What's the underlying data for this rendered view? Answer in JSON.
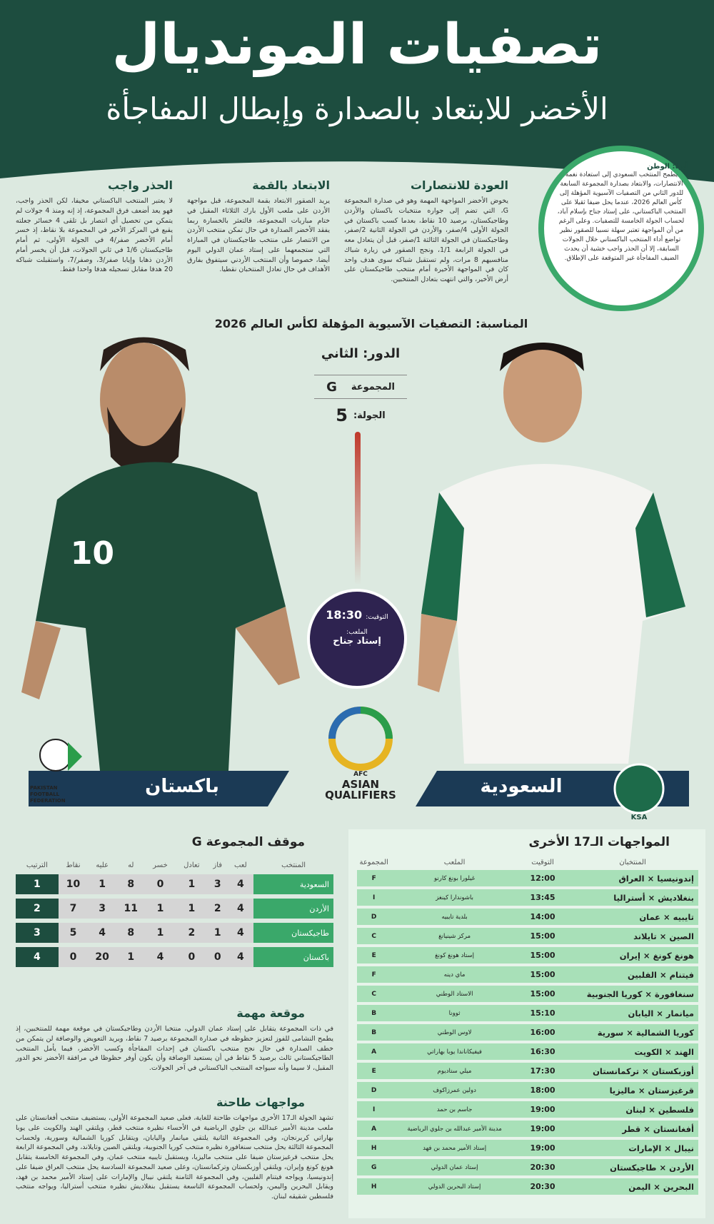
{
  "header": {
    "title": "تصفيات المونديال",
    "subtitle": "الأخضر للابتعاد بالصدارة وإبطال المفاجأة"
  },
  "intro": {
    "author": "أبها: الوطن",
    "text": "يطمح المنتخب السعودي إلى استعادة نغمة الانتصارات، والابتعاد بصدارة المجموعة السابعة للدور الثاني من التصفيات الآسيوية المؤهلة إلى كأس العالم 2026، عندما يحل ضيفا ثقيلا على المنتخب الباكستاني، على إستاد جناح بإسلام آباد، لحساب الجولة الخامسة للتصفيات. وعلى الرغم من أن المواجهة تعتبر سهلة نسبيا للصقور نظير تواضع أداء المنتخب الباكستاني خلال الجولات السابقة، إلا أن الحذر واجب خشية أن يحدث الضيف المفاجأة غير المتوقعة على الإطلاق."
  },
  "columns": [
    {
      "title": "العودة للانتصارات",
      "text": "يخوض الأخضر المواجهة المهمة وهو في صدارة المجموعة G، التي تضم إلى جواره منتخبات باكستان والأردن وطاجيكستان، برصيد 10 نقاط، بعدما كسب باكستان في الجولة الأولى 4/صفر، والأردن في الجولة الثانية 2/صفر، وطاجيكستان في الجولة الثالثة 1/صفر، قبل أن يتعادل معه في الجولة الرابعة 1/1، ونجح الصقور في زيارة شباك منافسيهم 8 مرات، ولم تستقبل شباكه سوى هدف واحد كان في المواجهة الأخيرة أمام منتخب طاجيكستان على أرض الأخير، والتي انتهت بتعادل المنتخبين."
    },
    {
      "title": "الابتعاد بالقمة",
      "text": "يريد الصقور الابتعاد بقمة المجموعة، قبل مواجهة الأردن على ملعب الأول بارك الثلاثاء المقبل في ختام مباريات المجموعة، فالتعثر بالخسارة ربما يفقد الأخضر الصدارة في حال تمكن منتخب الأردن من الانتصار على منتخب طاجيكستان في المباراة التي ستجمعهما على إستاد عمان الدولي اليوم أيضا، خصوصا وأن المنتخب الأردني سيتفوق بفارق الأهداف في حال تعادل المنتخبان نقطيا."
    },
    {
      "title": "الحذر واجب",
      "text": "لا يعتبر المنتخب الباكستاني مخيفا، لكن الحذر واجب، فهو يعد أضعف فرق المجموعة، إذ إنه ومنذ 4 جولات لم يتمكن من تحصيل أي انتصار بل تلقى 4 خسائر جعلته يقبع في المركز الأخير في المجموعة بلا نقاط، إذ خسر أمام الأخضر صفر/4 في الجولة الأولى، ثم أمام طاجيكستان 1/6 في ثاني الجولات، قبل أن يخسر أمام الأردن ذهابا وإيابا صفر/3، وصفر/7، واستقبلت شباكه 20 هدفا مقابل تسجيله هدفا واحدا فقط."
    }
  ],
  "match": {
    "occasion": "المناسبة: التصفيات الآسيوية المؤهلة لكأس العالم 2026",
    "round": "الدور: الثاني",
    "group_label": "المجموعة",
    "group": "G",
    "matchday_label": "الجولة:",
    "matchday": "5",
    "time_label": "التوقيت:",
    "time": "18:30",
    "venue_label": "الملعب:",
    "venue": "إستاد جناح",
    "home": "باكستان",
    "away": "السعودية",
    "away_badge": "KSA",
    "home_badge": "PAKISTAN FOOTBALL FEDERATION",
    "afc": "AFC",
    "afc_name": "ASIAN QUALIFIERS"
  },
  "standings": {
    "title": "موقف المجموعة G",
    "headers": [
      "المنتخب",
      "لعب",
      "فاز",
      "تعادل",
      "خسر",
      "له",
      "عليه",
      "نقاط",
      "الترتيب"
    ],
    "rows": [
      [
        "السعودية",
        "4",
        "3",
        "1",
        "0",
        "8",
        "1",
        "10",
        "1"
      ],
      [
        "الأردن",
        "4",
        "2",
        "1",
        "1",
        "11",
        "3",
        "7",
        "2"
      ],
      [
        "طاجيكستان",
        "4",
        "1",
        "2",
        "1",
        "8",
        "4",
        "5",
        "3"
      ],
      [
        "باكستان",
        "4",
        "0",
        "0",
        "4",
        "1",
        "20",
        "0",
        "4"
      ]
    ]
  },
  "notes": [
    {
      "title": "موقعة مهمة",
      "text": "في ذات المجموعة يتقابل على إستاد عمان الدولي، منتخبا الأردن وطاجيكستان في موقعة مهمة للمنتخبين، إذ يطمح النشامى للفوز لتعزيز حظوظه في صدارة المجموعة برصيد 7 نقاط، ويريد التعويض والوصافة لن يتمكن من خطف الصدارة في حال نجح منتخب باكستان في إحداث المفاجأة وكسب الأخضر، فيما يأمل المنتخب الطاجيكستاني ثالث برصيد 5 نقاط في أن يستعيد الوصافة وأن يكون أوفر حظوظا في مرافقة الأخضر نحو الدور المقبل، لا سيما وأنه سيواجه المنتخب الباكستاني في آخر الجولات."
    },
    {
      "title": "مواجهات طاحنة",
      "text": "تشهد الجولة الـ17 الأخرى مواجهات طاحنة للغاية، فعلى صعيد المجموعة الأولى، يستضيف منتخب أفغانستان على ملعب مدينة الأمير عبدالله بن جلوي الرياضية في الأحساء نظيره منتخب قطر، ويلتقي الهند والكويت على يوبا بهاراتي كريرنجان، وفي المجموعة الثانية يلتقي ميانمار واليابان، ويتقابل كوريا الشمالية وسورية، ولحساب المجموعة الثالثة يحل منتخب سنغافورة نظيره منتخب كوريا الجنوبية، ويلتقي الصين وتايلاند، وفي المجموعة الرابعة يحل منتخب قرغيزستان ضيفا على منتخب ماليزيا، ويستقبل تايبيه منتخب عمان، وفي المجموعة الخامسة يتقابل هونغ كونغ وإيران، ويلتقي أوزبكستان وتركمانستان، وعلى صعيد المجموعة السادسة يحل منتخب العراق ضيفا على إندونيسيا، ويواجه فيتنام الفلبين، وفي المجموعة الثامنة يلتقي نيبال والإمارات على إستاد الأمير محمد بن فهد، ويقابل البحرين واليمن، ولحساب المجموعة التاسعة يستقبل بنغلاديش نظيره منتخب أستراليا، ويواجه منتخب فلسطين شقيقه لبنان."
    }
  ],
  "fixtures": {
    "title": "المواجهات الـ17 الأخرى",
    "headers": [
      "المنتخبان",
      "التوقيت",
      "الملعب",
      "المجموعة"
    ],
    "rows": [
      [
        "إندونيسيا × العراق",
        "12:00",
        "غيلورا بونغ كارنو",
        "F"
      ],
      [
        "بنغلاديش × أستراليا",
        "13:45",
        "باشوندارا كينغز",
        "I"
      ],
      [
        "تايبيه × عمان",
        "14:00",
        "بلدية تايبيه",
        "D"
      ],
      [
        "الصين × تايلاند",
        "15:00",
        "مركز شينيانغ",
        "C"
      ],
      [
        "هونغ كونغ × إيران",
        "15:00",
        "إستاد هونغ كونغ",
        "E"
      ],
      [
        "فيتنام × الفلبين",
        "15:00",
        "ماي دينه",
        "F"
      ],
      [
        "سنغافورة × كوريا الجنوبية",
        "15:00",
        "الاستاد الوطني",
        "C"
      ],
      [
        "ميانمار × اليابان",
        "15:10",
        "ثوونا",
        "B"
      ],
      [
        "كوريا الشمالية × سورية",
        "16:00",
        "لاوس الوطني",
        "B"
      ],
      [
        "الهند × الكويت",
        "16:30",
        "فيفيكاناندا يوبا بهاراتي",
        "A"
      ],
      [
        "أوزبكستان × تركمانستان",
        "17:30",
        "ميلي ستاديوم",
        "E"
      ],
      [
        "قرغيزستان × ماليزيا",
        "18:00",
        "دولين عمرزاكوف",
        "D"
      ],
      [
        "فلسطين × لبنان",
        "19:00",
        "جاسم بن حمد",
        "I"
      ],
      [
        "أفغانستان × قطر",
        "19:00",
        "مدينة الأمير عبدالله بن جلوي الرياضية",
        "A"
      ],
      [
        "نيبال × الإمارات",
        "19:00",
        "إستاد الأمير محمد بن فهد",
        "H"
      ],
      [
        "الأردن × طاجيكستان",
        "20:30",
        "إستاد عمان الدولي",
        "G"
      ],
      [
        "البحرين × اليمن",
        "20:30",
        "إستاد البحرين الدولي",
        "H"
      ]
    ]
  }
}
